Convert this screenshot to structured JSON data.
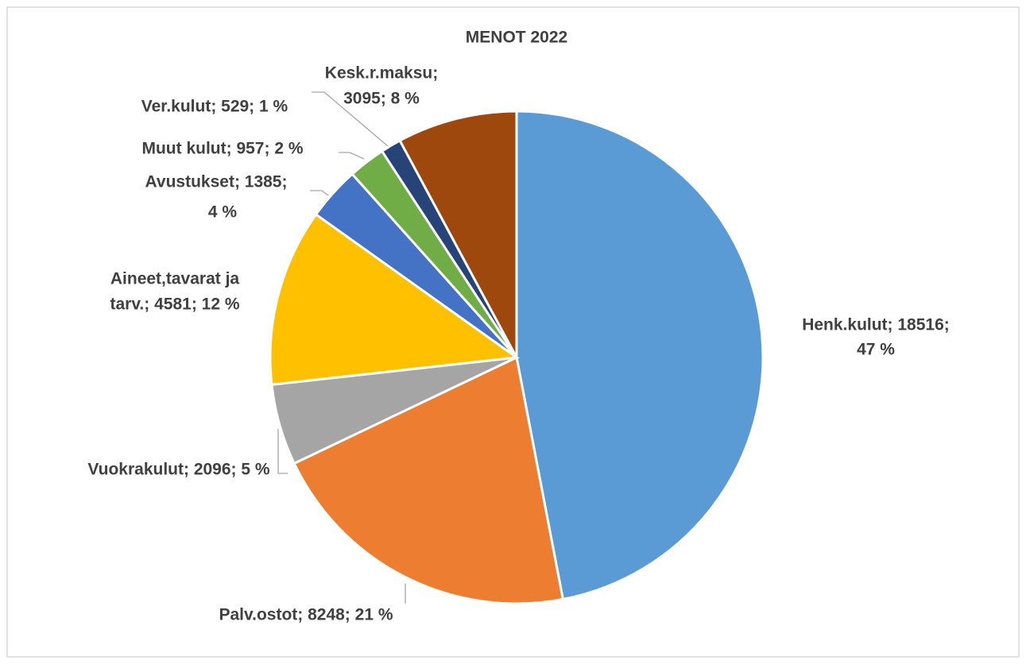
{
  "chart_data": {
    "type": "pie",
    "title": "MENOT 2022",
    "values": [
      18516,
      8248,
      2096,
      4581,
      1385,
      957,
      529,
      3095
    ],
    "value_labels": [
      [
        "Henk.kulut; 18516;",
        "47 %"
      ],
      [
        "Palv.ostot; 8248; 21 %"
      ],
      [
        "Vuokrakulut; 2096; 5 %"
      ],
      [
        "Aineet,tavarat ja",
        "tarv.; 4581; 12 %"
      ],
      [
        "Avustukset; 1385;",
        "4 %"
      ],
      [
        "Muut kulut; 957; 2 %"
      ],
      [
        "Ver.kulut; 529; 1 %"
      ],
      [
        "Kesk.r.maksu;",
        "3095; 8 %"
      ]
    ],
    "colors": [
      "#5b9bd5",
      "#ed7d31",
      "#a5a5a5",
      "#ffc000",
      "#4472c4",
      "#70ad47",
      "#264478",
      "#9e480e"
    ]
  }
}
